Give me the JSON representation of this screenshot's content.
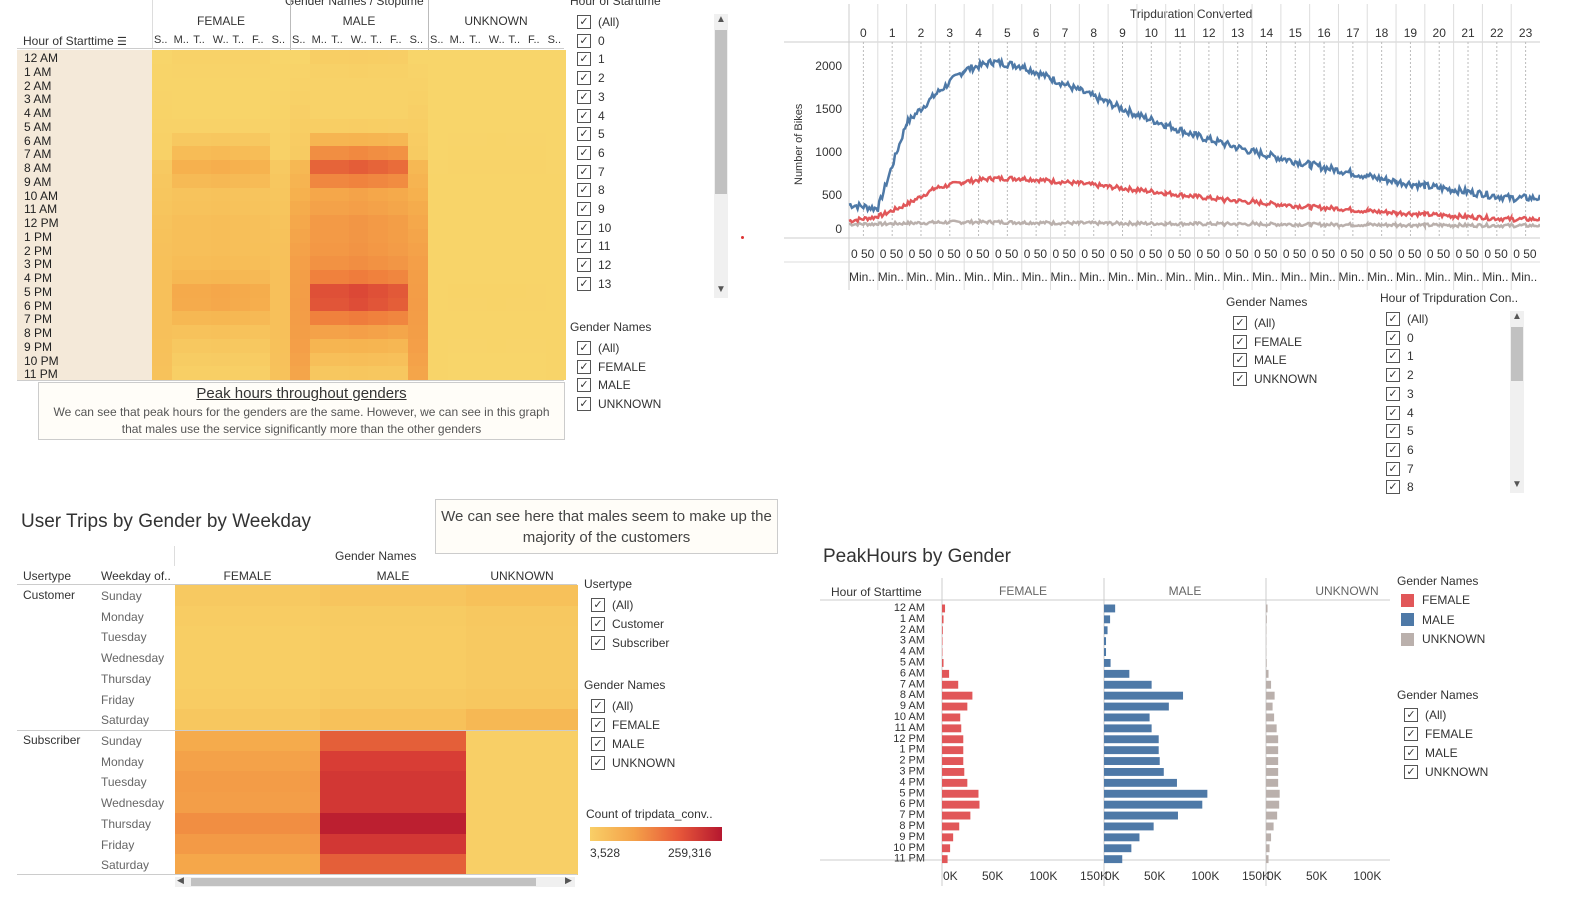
{
  "colors": {
    "female": "#e15759",
    "male": "#4e79a7",
    "unknown": "#bab0ac",
    "heat_low": "#f9d96a",
    "heat_high": "#b5172f"
  },
  "heatmap1": {
    "col_group_title": "Gender Names / Stoptime",
    "row_header": "Hour of Starttime",
    "groups": [
      "FEMALE",
      "MALE",
      "UNKNOWN"
    ],
    "day_abbr": [
      [
        "S..",
        "M..",
        "T..",
        "W..",
        "T..",
        "F..",
        "S.."
      ],
      [
        "S..",
        "M..",
        "T..",
        "W..",
        "T..",
        "F..",
        "S.."
      ],
      [
        "S..",
        "M..",
        "T..",
        "W..",
        "T..",
        "F..",
        "S.."
      ]
    ],
    "hours": [
      "12 AM",
      "1 AM",
      "2 AM",
      "3 AM",
      "4 AM",
      "5 AM",
      "6 AM",
      "7 AM",
      "8 AM",
      "9 AM",
      "10 AM",
      "11 AM",
      "12 PM",
      "1 PM",
      "2 PM",
      "3 PM",
      "4 PM",
      "5 PM",
      "6 PM",
      "7 PM",
      "8 PM",
      "9 PM",
      "10 PM",
      "11 PM"
    ],
    "tooltip_title": "Peak hours throughout genders",
    "tooltip_text": "We can see that peak hours for the genders are the same. However, we can see in this graph that males use the service significantly more than the other genders"
  },
  "filter_hour_start": {
    "title": "Hour of Starttime",
    "items": [
      "(All)",
      "0",
      "1",
      "2",
      "3",
      "4",
      "5",
      "6",
      "7",
      "8",
      "9",
      "10",
      "11",
      "12",
      "13"
    ]
  },
  "filter_gender1": {
    "title": "Gender Names",
    "items": [
      "(All)",
      "FEMALE",
      "MALE",
      "UNKNOWN"
    ]
  },
  "line_chart": {
    "title": "Tripduration Converted",
    "ylabel": "Number of Bikes",
    "hours": [
      "0",
      "1",
      "2",
      "3",
      "4",
      "5",
      "6",
      "7",
      "8",
      "9",
      "10",
      "11",
      "12",
      "13",
      "14",
      "15",
      "16",
      "17",
      "18",
      "19",
      "20",
      "21",
      "22",
      "23"
    ],
    "x_tick": "0 50",
    "x_unit": "Min..",
    "yticks": [
      "2000",
      "1500",
      "1000",
      "500",
      "0"
    ]
  },
  "filter_gender2": {
    "title": "Gender Names",
    "items": [
      "(All)",
      "FEMALE",
      "MALE",
      "UNKNOWN"
    ]
  },
  "filter_hour_trip": {
    "title": "Hour of Tripduration Con..",
    "items": [
      "(All)",
      "0",
      "1",
      "2",
      "3",
      "4",
      "5",
      "6",
      "7",
      "8"
    ]
  },
  "weekday": {
    "title": "User Trips by Gender by Weekday",
    "note": "We can see here that males seem to make up the majority of the customers",
    "col_group": "Gender Names",
    "col_usertype": "Usertype",
    "col_weekday": "Weekday of..",
    "genders": [
      "FEMALE",
      "MALE",
      "UNKNOWN"
    ],
    "usertypes": [
      "Customer",
      "Subscriber"
    ],
    "days": [
      "Sunday",
      "Monday",
      "Tuesday",
      "Wednesday",
      "Thursday",
      "Friday",
      "Saturday"
    ]
  },
  "filter_usertype": {
    "title": "Usertype",
    "items": [
      "(All)",
      "Customer",
      "Subscriber"
    ]
  },
  "filter_gender3": {
    "title": "Gender Names",
    "items": [
      "(All)",
      "FEMALE",
      "MALE",
      "UNKNOWN"
    ]
  },
  "legend_count": {
    "title": "Count of tripdata_conv..",
    "min": "3,528",
    "max": "259,316"
  },
  "chart_data": {
    "type": "bar",
    "title": "PeakHours by Gender",
    "ylabel": "Hour of Starttime",
    "categories": [
      "12 AM",
      "1 AM",
      "2 AM",
      "3 AM",
      "4 AM",
      "5 AM",
      "6 AM",
      "7 AM",
      "8 AM",
      "9 AM",
      "10 AM",
      "11 AM",
      "12 PM",
      "1 PM",
      "2 PM",
      "3 PM",
      "4 PM",
      "5 PM",
      "6 PM",
      "7 PM",
      "8 PM",
      "9 PM",
      "10 PM",
      "11 PM"
    ],
    "series": [
      {
        "name": "FEMALE",
        "values": [
          3000,
          1500,
          800,
          500,
          400,
          1500,
          7000,
          16000,
          30000,
          25000,
          18000,
          19000,
          21000,
          21000,
          21000,
          22000,
          25000,
          36000,
          37000,
          28000,
          17000,
          11000,
          8000,
          5500
        ]
      },
      {
        "name": "MALE",
        "values": [
          11000,
          6000,
          3500,
          2000,
          2000,
          6500,
          25000,
          47000,
          78000,
          64000,
          45000,
          47000,
          54000,
          54000,
          55000,
          59000,
          72000,
          102000,
          97000,
          73000,
          49000,
          35000,
          27000,
          18000
        ]
      },
      {
        "name": "UNKNOWN",
        "values": [
          1500,
          800,
          400,
          300,
          300,
          700,
          2500,
          5000,
          8500,
          6500,
          8000,
          10500,
          12000,
          12000,
          12000,
          12000,
          12000,
          13500,
          13000,
          11000,
          7500,
          5000,
          3500,
          2500
        ]
      }
    ],
    "xticks": [
      "0K",
      "50K",
      "100K",
      "150K"
    ],
    "xmax": 150000
  },
  "legend_peak": {
    "title": "Gender Names",
    "items": [
      "FEMALE",
      "MALE",
      "UNKNOWN"
    ]
  },
  "filter_gender4": {
    "title": "Gender Names",
    "items": [
      "(All)",
      "FEMALE",
      "MALE",
      "UNKNOWN"
    ]
  }
}
